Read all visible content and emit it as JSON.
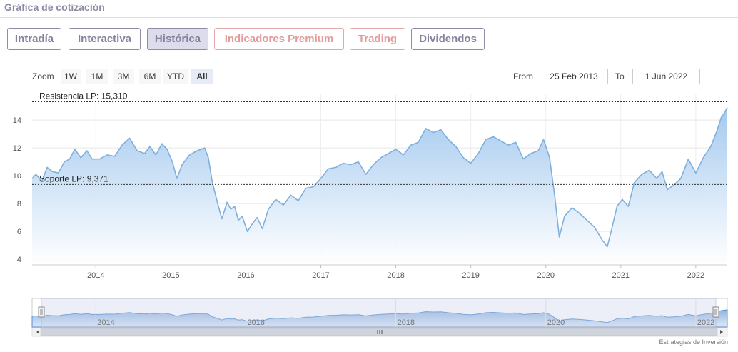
{
  "header": {
    "title": "Gráfica de cotización"
  },
  "tabs": [
    {
      "label": "Intradía",
      "style": "blue"
    },
    {
      "label": "Interactiva",
      "style": "blue"
    },
    {
      "label": "Histórica",
      "style": "blue",
      "active": true
    },
    {
      "label": "Indicadores Premium",
      "style": "red"
    },
    {
      "label": "Trading",
      "style": "red"
    },
    {
      "label": "Dividendos",
      "style": "blue"
    }
  ],
  "zoom": {
    "label": "Zoom",
    "buttons": [
      {
        "label": "1W"
      },
      {
        "label": "1M"
      },
      {
        "label": "3M"
      },
      {
        "label": "6M"
      },
      {
        "label": "YTD"
      },
      {
        "label": "All",
        "active": true
      }
    ]
  },
  "range": {
    "from_label": "From",
    "from_value": "25 Feb 2013",
    "to_label": "To",
    "to_value": "1 Jun 2022"
  },
  "credit": "Estrategias de Inversión",
  "colors": {
    "line": "#7fb0dc",
    "fill_top": "#9ec6ee",
    "fill_bottom": "#ffffff",
    "tab_blue": "#83839e",
    "tab_red": "#e39a9a"
  },
  "chart_data": {
    "type": "area",
    "title": "",
    "xlabel": "",
    "ylabel": "",
    "xlim": [
      2013.15,
      2022.42
    ],
    "ylim": [
      3.6,
      15.9
    ],
    "y_ticks": [
      4,
      6,
      8,
      10,
      12,
      14
    ],
    "x_ticks": [
      "2014",
      "2015",
      "2016",
      "2017",
      "2018",
      "2019",
      "2020",
      "2021",
      "2022"
    ],
    "grid": true,
    "annotations": [
      {
        "label": "Resistencia LP: 15,310",
        "value": 15.31
      },
      {
        "label": "Soporte LP: 9,371",
        "value": 9.371
      }
    ],
    "navigator_labels": [
      "2014",
      "2016",
      "2018",
      "2020",
      "2022"
    ],
    "series": [
      {
        "x": [
          2013.15,
          2013.2,
          2013.28,
          2013.35,
          2013.42,
          2013.5,
          2013.58,
          2013.65,
          2013.72,
          2013.8,
          2013.88,
          2013.95,
          2014.05,
          2014.15,
          2014.25,
          2014.35,
          2014.45,
          2014.55,
          2014.65,
          2014.72,
          2014.8,
          2014.88,
          2014.95,
          2015.02,
          2015.08,
          2015.15,
          2015.25,
          2015.35,
          2015.45,
          2015.5,
          2015.55,
          2015.62,
          2015.68,
          2015.75,
          2015.8,
          2015.85,
          2015.9,
          2015.95,
          2016.02,
          2016.08,
          2016.15,
          2016.22,
          2016.3,
          2016.4,
          2016.5,
          2016.6,
          2016.7,
          2016.8,
          2016.9,
          2017.0,
          2017.1,
          2017.2,
          2017.3,
          2017.4,
          2017.5,
          2017.6,
          2017.7,
          2017.8,
          2017.9,
          2018.0,
          2018.1,
          2018.2,
          2018.3,
          2018.4,
          2018.5,
          2018.6,
          2018.7,
          2018.8,
          2018.9,
          2019.0,
          2019.1,
          2019.2,
          2019.3,
          2019.4,
          2019.5,
          2019.6,
          2019.7,
          2019.8,
          2019.9,
          2019.97,
          2020.05,
          2020.12,
          2020.18,
          2020.25,
          2020.35,
          2020.45,
          2020.55,
          2020.65,
          2020.75,
          2020.82,
          2020.88,
          2020.95,
          2021.02,
          2021.1,
          2021.18,
          2021.28,
          2021.38,
          2021.48,
          2021.55,
          2021.62,
          2021.7,
          2021.8,
          2021.9,
          2022.0,
          2022.1,
          2022.2,
          2022.28,
          2022.34,
          2022.38,
          2022.42
        ],
        "values": [
          9.8,
          10.1,
          9.6,
          10.6,
          10.3,
          10.2,
          11.0,
          11.2,
          11.9,
          11.3,
          11.8,
          11.2,
          11.2,
          11.5,
          11.4,
          12.2,
          12.7,
          11.8,
          11.6,
          12.1,
          11.5,
          12.3,
          11.9,
          11.0,
          9.8,
          10.8,
          11.5,
          11.8,
          12.0,
          11.3,
          9.6,
          8.1,
          6.9,
          8.1,
          7.6,
          7.8,
          6.8,
          7.1,
          6.0,
          6.5,
          7.0,
          6.2,
          7.6,
          8.3,
          7.9,
          8.6,
          8.2,
          9.1,
          9.2,
          9.8,
          10.5,
          10.6,
          10.9,
          10.8,
          11.0,
          10.1,
          10.8,
          11.3,
          11.6,
          11.9,
          11.5,
          12.2,
          12.4,
          13.4,
          13.1,
          13.3,
          12.6,
          12.1,
          11.3,
          10.9,
          11.6,
          12.6,
          12.8,
          12.5,
          12.2,
          12.4,
          11.2,
          11.6,
          11.8,
          12.6,
          11.3,
          8.5,
          5.6,
          7.1,
          7.7,
          7.3,
          6.8,
          6.3,
          5.4,
          4.9,
          6.2,
          7.8,
          8.3,
          7.8,
          9.5,
          10.1,
          10.4,
          9.8,
          10.3,
          9.0,
          9.3,
          9.8,
          11.2,
          10.2,
          11.3,
          12.1,
          13.2,
          14.2,
          14.5,
          14.9
        ]
      }
    ]
  }
}
